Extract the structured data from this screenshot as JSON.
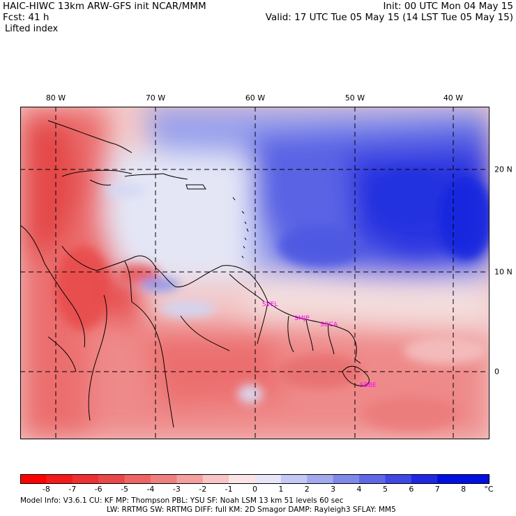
{
  "header": {
    "left_line1": "HAIC-HIWC 13km ARW-GFS init    NCAR/MMM",
    "left_line2": "Fcst:    41 h",
    "field": "Lifted index",
    "right_line1": "Init: 00 UTC Mon 04 May 15",
    "right_line2": "Valid: 17 UTC Tue 05 May 15 (14 LST Tue 05 May 15)"
  },
  "map": {
    "lon_labels": [
      "80 W",
      "70 W",
      "60 W",
      "50 W",
      "40 W"
    ],
    "lat_labels": [
      "20 N",
      "10 N",
      "0"
    ],
    "station_labels": [
      "SVEL",
      "SMJP",
      "SOCA",
      "SBBE"
    ],
    "station_color": "#ff00ff"
  },
  "colorbar": {
    "ticks": [
      "-8",
      "-7",
      "-6",
      "-5",
      "-4",
      "-3",
      "-2",
      "-1",
      "0",
      "1",
      "2",
      "3",
      "4",
      "5",
      "6",
      "7",
      "8"
    ],
    "unit": "°C",
    "colors": [
      "#ff0000",
      "#f51a1a",
      "#ee3030",
      "#e84848",
      "#ec6464",
      "#f08080",
      "#f4a0a0",
      "#f8c4c4",
      "#fde4e4",
      "#e6e6f8",
      "#c4c8f4",
      "#a2aaee",
      "#8088ea",
      "#6068e6",
      "#4048e4",
      "#2028e2",
      "#0010e0"
    ]
  },
  "footer": {
    "line1": "Model Info: V3.6.1    CU: KF       MP: Thompson    PBL: YSU       SF: Noah LSM    13 km   51 levels   60 sec",
    "line2": "LW: RRTMG    SW: RRTMG   DIFF: full   KM: 2D Smagor  DAMP: Rayleigh3  SFLAY: MM5"
  }
}
